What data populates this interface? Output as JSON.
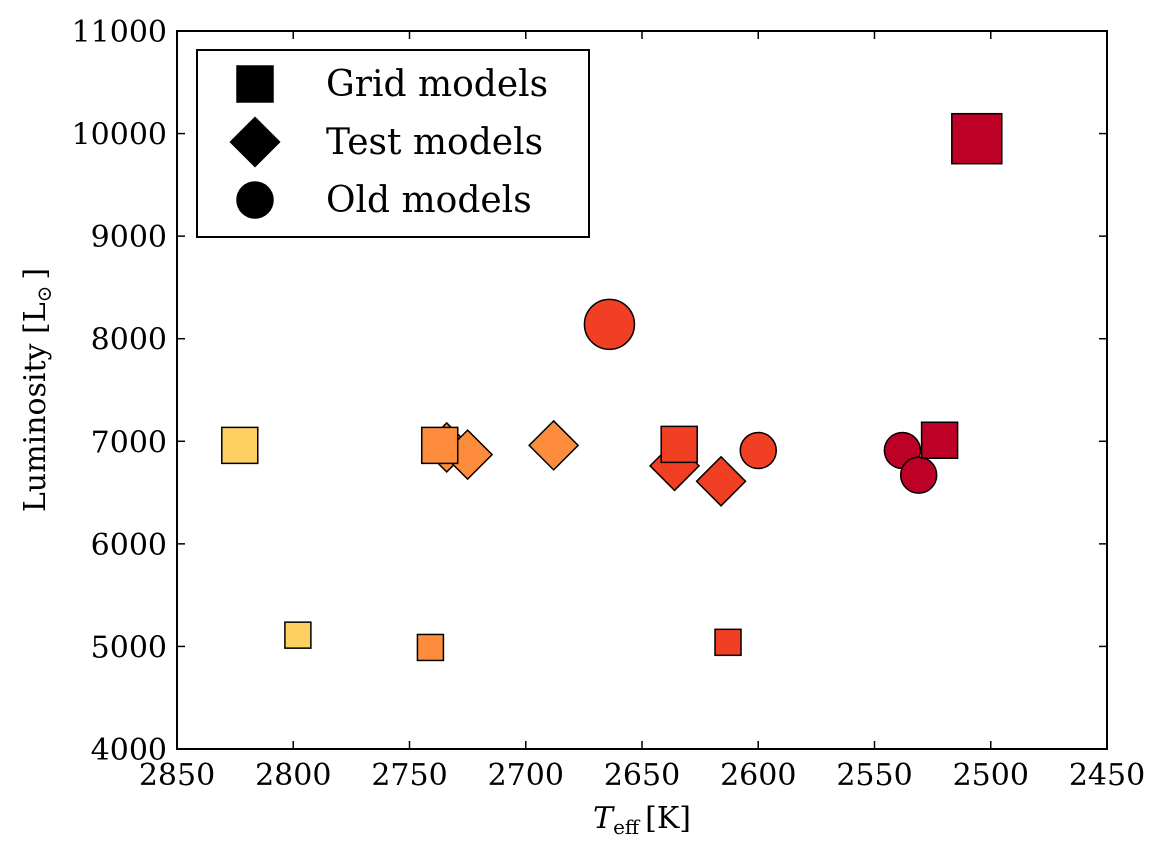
{
  "chart_data": {
    "type": "scatter",
    "xlabel_main": "T",
    "xlabel_sub": "eff",
    "xlabel_unit": "[K]",
    "ylabel_main": "Luminosity [L",
    "ylabel_sym": "⊙",
    "ylabel_close": "]",
    "xlim": [
      2850,
      2450
    ],
    "ylim": [
      4000,
      11000
    ],
    "x_reversed": true,
    "x_ticks": [
      2850,
      2800,
      2750,
      2700,
      2650,
      2600,
      2550,
      2500,
      2450
    ],
    "y_ticks": [
      4000,
      5000,
      6000,
      7000,
      8000,
      9000,
      10000,
      11000
    ],
    "grid": false,
    "legend_placement": "top-left",
    "legend": [
      {
        "marker": "square",
        "label": "Grid models"
      },
      {
        "marker": "diamond",
        "label": "Test models"
      },
      {
        "marker": "circle",
        "label": "Old models"
      }
    ],
    "colors": {
      "yellow": "#fdd062",
      "orange": "#fd8c3c",
      "red": "#f03f22",
      "darkred": "#bd0026"
    },
    "points": [
      {
        "x": 2823,
        "y": 6960,
        "marker": "square",
        "color": "yellow",
        "size": "large"
      },
      {
        "x": 2798,
        "y": 5110,
        "marker": "square",
        "color": "yellow",
        "size": "small"
      },
      {
        "x": 2741,
        "y": 4990,
        "marker": "square",
        "color": "orange",
        "size": "small"
      },
      {
        "x": 2734,
        "y": 6940,
        "marker": "diamond",
        "color": "orange",
        "size": "large"
      },
      {
        "x": 2725,
        "y": 6870,
        "marker": "diamond",
        "color": "orange",
        "size": "large"
      },
      {
        "x": 2737,
        "y": 6960,
        "marker": "square",
        "color": "orange",
        "size": "large"
      },
      {
        "x": 2688,
        "y": 6960,
        "marker": "diamond",
        "color": "orange",
        "size": "large"
      },
      {
        "x": 2664,
        "y": 8140,
        "marker": "circle",
        "color": "red",
        "size": "xlarge"
      },
      {
        "x": 2636,
        "y": 6760,
        "marker": "diamond",
        "color": "red",
        "size": "large"
      },
      {
        "x": 2634,
        "y": 6970,
        "marker": "square",
        "color": "red",
        "size": "large"
      },
      {
        "x": 2616,
        "y": 6610,
        "marker": "diamond",
        "color": "red",
        "size": "large"
      },
      {
        "x": 2613,
        "y": 5040,
        "marker": "square",
        "color": "red",
        "size": "small"
      },
      {
        "x": 2600,
        "y": 6910,
        "marker": "circle",
        "color": "red",
        "size": "large"
      },
      {
        "x": 2538,
        "y": 6910,
        "marker": "circle",
        "color": "darkred",
        "size": "large"
      },
      {
        "x": 2531,
        "y": 6670,
        "marker": "circle",
        "color": "darkred",
        "size": "large"
      },
      {
        "x": 2522,
        "y": 7010,
        "marker": "square",
        "color": "darkred",
        "size": "large"
      },
      {
        "x": 2506,
        "y": 9950,
        "marker": "square",
        "color": "darkred",
        "size": "xlarge"
      }
    ]
  }
}
